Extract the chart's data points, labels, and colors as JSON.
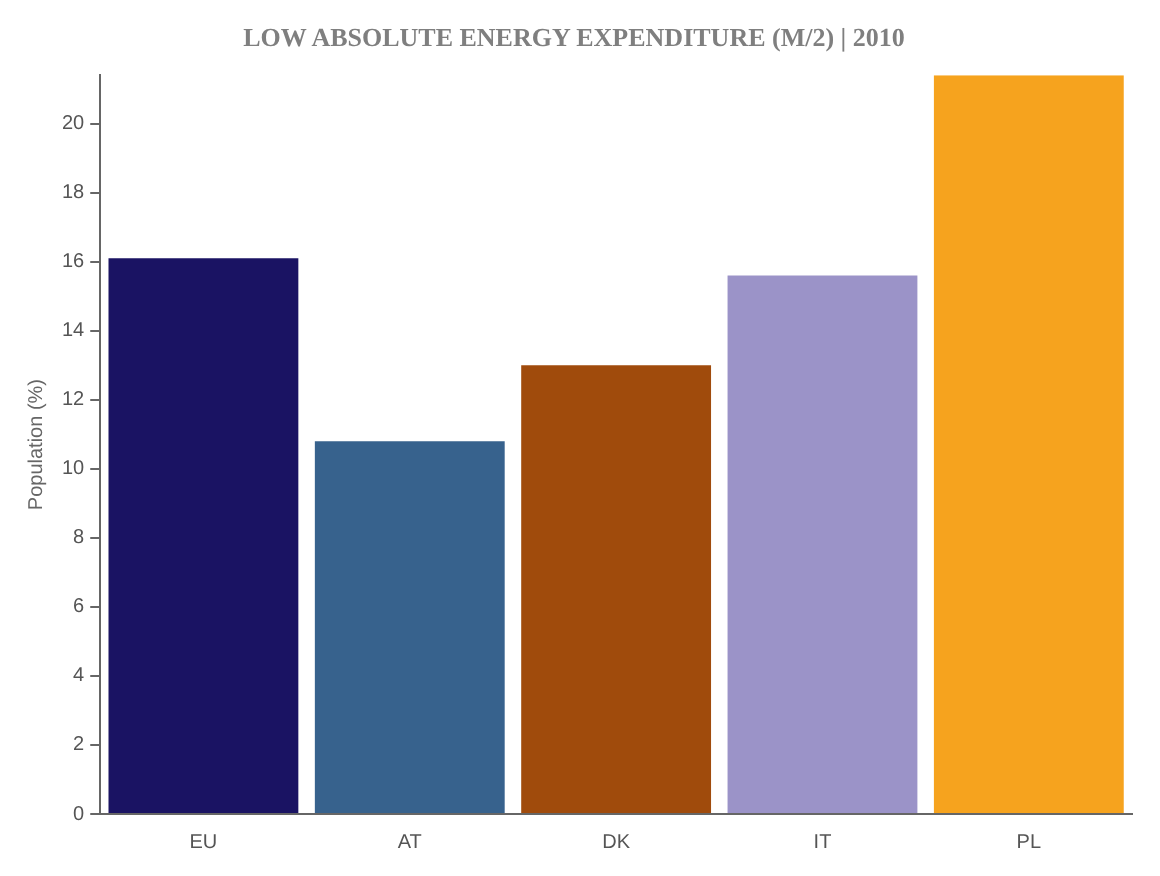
{
  "chart_data": {
    "type": "bar",
    "title": "LOW ABSOLUTE ENERGY EXPENDITURE (M/2) | 2010",
    "ylabel": "Population (%)",
    "categories": [
      "EU",
      "AT",
      "DK",
      "IT",
      "PL"
    ],
    "values": [
      16.1,
      10.8,
      13.0,
      15.6,
      21.4
    ],
    "colors": [
      "#1a1363",
      "#37628d",
      "#a04b0c",
      "#9b93c8",
      "#f6a31e"
    ],
    "ylim": [
      0,
      21.4
    ],
    "yticks": [
      0,
      2,
      4,
      6,
      8,
      10,
      12,
      14,
      16,
      18,
      20
    ],
    "grid": false,
    "legend": false
  }
}
